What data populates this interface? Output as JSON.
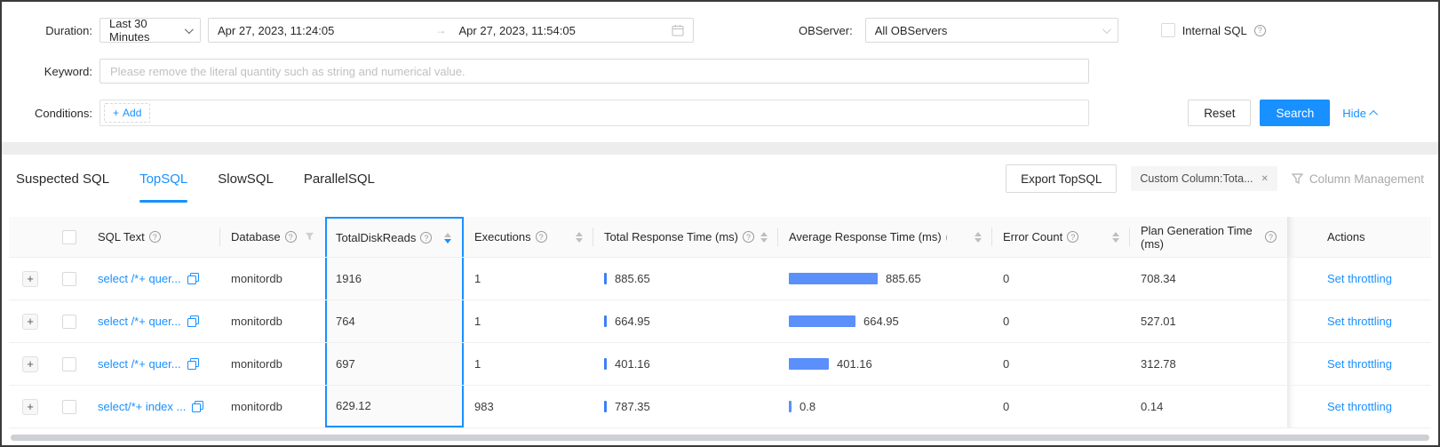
{
  "colors": {
    "accent": "#1890ff",
    "bar": "#5b8ff9",
    "highlight_border": "#1890ff"
  },
  "filter_panel": {
    "duration": {
      "label": "Duration:",
      "value": "Last 30 Minutes"
    },
    "date_range": {
      "start": "Apr 27, 2023, 11:24:05",
      "end": "Apr 27, 2023, 11:54:05"
    },
    "observer": {
      "label": "OBServer:",
      "value": "All OBServers"
    },
    "internal_sql_label": "Internal SQL",
    "keyword": {
      "label": "Keyword:",
      "placeholder": "Please remove the literal quantity such as string and numerical value."
    },
    "conditions": {
      "label": "Conditions:",
      "add_button": "Add"
    },
    "reset_button": "Reset",
    "search_button": "Search",
    "hide_link": "Hide"
  },
  "tabs": [
    {
      "label": "Suspected SQL",
      "active": false
    },
    {
      "label": "TopSQL",
      "active": true
    },
    {
      "label": "SlowSQL",
      "active": false
    },
    {
      "label": "ParallelSQL",
      "active": false
    }
  ],
  "toolbar": {
    "export_button": "Export TopSQL",
    "custom_column_tag": "Custom Column:Tota...",
    "column_management": "Column Management"
  },
  "table": {
    "columns": {
      "sql_text": "SQL Text",
      "database": "Database",
      "total_disk_reads": "TotalDiskReads",
      "executions": "Executions",
      "total_response_time": "Total Response Time (ms)",
      "avg_response_time": "Average Response Time (ms)",
      "error_count": "Error Count",
      "plan_generation_time": "Plan Generation Time (ms)",
      "actions": "Actions"
    },
    "rows": [
      {
        "sql": "select /*+ quer...",
        "database": "monitordb",
        "total_disk_reads": "1916",
        "executions": "1",
        "total_response_time": "885.65",
        "avg_response_time": "885.65",
        "error_count": "0",
        "plan_generation_time": "708.34",
        "action": "Set throttling"
      },
      {
        "sql": "select /*+ quer...",
        "database": "monitordb",
        "total_disk_reads": "764",
        "executions": "1",
        "total_response_time": "664.95",
        "avg_response_time": "664.95",
        "error_count": "0",
        "plan_generation_time": "527.01",
        "action": "Set throttling"
      },
      {
        "sql": "select /*+ quer...",
        "database": "monitordb",
        "total_disk_reads": "697",
        "executions": "1",
        "total_response_time": "401.16",
        "avg_response_time": "401.16",
        "error_count": "0",
        "plan_generation_time": "312.78",
        "action": "Set throttling"
      },
      {
        "sql": "select/*+ index ...",
        "database": "monitordb",
        "total_disk_reads": "629.12",
        "executions": "983",
        "total_response_time": "787.35",
        "avg_response_time": "0.8",
        "error_count": "0",
        "plan_generation_time": "0.14",
        "action": "Set throttling"
      }
    ]
  }
}
